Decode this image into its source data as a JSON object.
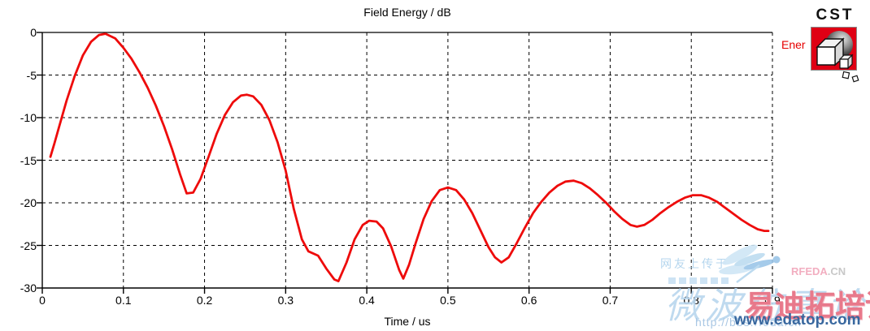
{
  "title": "Field Energy / dB",
  "branding": {
    "cst_wordmark": "CST",
    "legend_label": "Ener",
    "cst_red": "#df0014"
  },
  "chart_data": {
    "type": "line",
    "title": "Field Energy / dB",
    "xlabel": "Time / us",
    "ylabel": "",
    "xlim": [
      0,
      0.9
    ],
    "ylim": [
      -30,
      0
    ],
    "grid": "dashed",
    "legend_position": "top-right-outside",
    "x_ticks": [
      {
        "v": 0.0,
        "label": "0"
      },
      {
        "v": 0.1,
        "label": "0.1"
      },
      {
        "v": 0.2,
        "label": "0.2"
      },
      {
        "v": 0.3,
        "label": "0.3"
      },
      {
        "v": 0.4,
        "label": "0.4"
      },
      {
        "v": 0.5,
        "label": "0.5"
      },
      {
        "v": 0.6,
        "label": "0.6"
      },
      {
        "v": 0.7,
        "label": "0.7"
      },
      {
        "v": 0.8,
        "label": "0.8"
      },
      {
        "v": 0.9,
        "label": "0.9"
      }
    ],
    "y_ticks": [
      {
        "v": 0,
        "label": "0"
      },
      {
        "v": -5,
        "label": "-5"
      },
      {
        "v": -10,
        "label": "-10"
      },
      {
        "v": -15,
        "label": "-15"
      },
      {
        "v": -20,
        "label": "-20"
      },
      {
        "v": -25,
        "label": "-25"
      },
      {
        "v": -30,
        "label": "-30"
      }
    ],
    "series": [
      {
        "name": "Ener",
        "color": "#ee0b0b",
        "points": [
          [
            0.01,
            -14.6
          ],
          [
            0.015,
            -13.0
          ],
          [
            0.02,
            -11.3
          ],
          [
            0.03,
            -8.0
          ],
          [
            0.04,
            -5.1
          ],
          [
            0.05,
            -2.7
          ],
          [
            0.06,
            -1.1
          ],
          [
            0.07,
            -0.3
          ],
          [
            0.078,
            -0.15
          ],
          [
            0.09,
            -0.7
          ],
          [
            0.1,
            -1.8
          ],
          [
            0.11,
            -3.1
          ],
          [
            0.12,
            -4.7
          ],
          [
            0.13,
            -6.5
          ],
          [
            0.14,
            -8.6
          ],
          [
            0.15,
            -11.0
          ],
          [
            0.16,
            -13.7
          ],
          [
            0.17,
            -16.7
          ],
          [
            0.178,
            -18.9
          ],
          [
            0.186,
            -18.8
          ],
          [
            0.195,
            -17.2
          ],
          [
            0.205,
            -14.6
          ],
          [
            0.215,
            -11.9
          ],
          [
            0.225,
            -9.7
          ],
          [
            0.235,
            -8.2
          ],
          [
            0.245,
            -7.4
          ],
          [
            0.252,
            -7.3
          ],
          [
            0.26,
            -7.5
          ],
          [
            0.27,
            -8.5
          ],
          [
            0.28,
            -10.3
          ],
          [
            0.29,
            -12.9
          ],
          [
            0.3,
            -16.2
          ],
          [
            0.31,
            -20.7
          ],
          [
            0.32,
            -24.3
          ],
          [
            0.328,
            -25.7
          ],
          [
            0.34,
            -26.2
          ],
          [
            0.35,
            -27.7
          ],
          [
            0.36,
            -29.0
          ],
          [
            0.365,
            -29.2
          ],
          [
            0.375,
            -27.0
          ],
          [
            0.385,
            -24.3
          ],
          [
            0.395,
            -22.6
          ],
          [
            0.403,
            -22.1
          ],
          [
            0.412,
            -22.2
          ],
          [
            0.42,
            -23.0
          ],
          [
            0.43,
            -25.1
          ],
          [
            0.44,
            -27.9
          ],
          [
            0.445,
            -28.9
          ],
          [
            0.452,
            -27.3
          ],
          [
            0.46,
            -24.8
          ],
          [
            0.47,
            -21.9
          ],
          [
            0.48,
            -19.8
          ],
          [
            0.49,
            -18.5
          ],
          [
            0.5,
            -18.2
          ],
          [
            0.51,
            -18.5
          ],
          [
            0.52,
            -19.6
          ],
          [
            0.53,
            -21.2
          ],
          [
            0.54,
            -23.2
          ],
          [
            0.55,
            -25.2
          ],
          [
            0.558,
            -26.4
          ],
          [
            0.566,
            -27.0
          ],
          [
            0.575,
            -26.4
          ],
          [
            0.585,
            -24.7
          ],
          [
            0.595,
            -22.9
          ],
          [
            0.605,
            -21.2
          ],
          [
            0.615,
            -19.9
          ],
          [
            0.625,
            -18.8
          ],
          [
            0.635,
            -18.0
          ],
          [
            0.645,
            -17.5
          ],
          [
            0.655,
            -17.4
          ],
          [
            0.665,
            -17.7
          ],
          [
            0.675,
            -18.3
          ],
          [
            0.685,
            -19.1
          ],
          [
            0.695,
            -20.0
          ],
          [
            0.705,
            -21.0
          ],
          [
            0.715,
            -21.9
          ],
          [
            0.725,
            -22.6
          ],
          [
            0.733,
            -22.8
          ],
          [
            0.742,
            -22.6
          ],
          [
            0.752,
            -22.0
          ],
          [
            0.762,
            -21.2
          ],
          [
            0.772,
            -20.5
          ],
          [
            0.782,
            -19.9
          ],
          [
            0.792,
            -19.4
          ],
          [
            0.802,
            -19.1
          ],
          [
            0.812,
            -19.1
          ],
          [
            0.822,
            -19.4
          ],
          [
            0.832,
            -19.9
          ],
          [
            0.842,
            -20.6
          ],
          [
            0.852,
            -21.3
          ],
          [
            0.862,
            -22.0
          ],
          [
            0.872,
            -22.6
          ],
          [
            0.882,
            -23.1
          ],
          [
            0.89,
            -23.3
          ],
          [
            0.895,
            -23.3
          ]
        ]
      }
    ]
  },
  "watermarks": {
    "uploader": "网友上传于",
    "site_main": "RFEDA",
    "site_tld": ".CN",
    "forum_script": "微波仿真论坛",
    "training": "易迪拓培训",
    "url": "www.edatop.com",
    "bbs_url": "http://bbs.rfeda.cn",
    "pink": "#e8798b",
    "blue": "#39689f",
    "light_blue": "#b5d6ee"
  }
}
